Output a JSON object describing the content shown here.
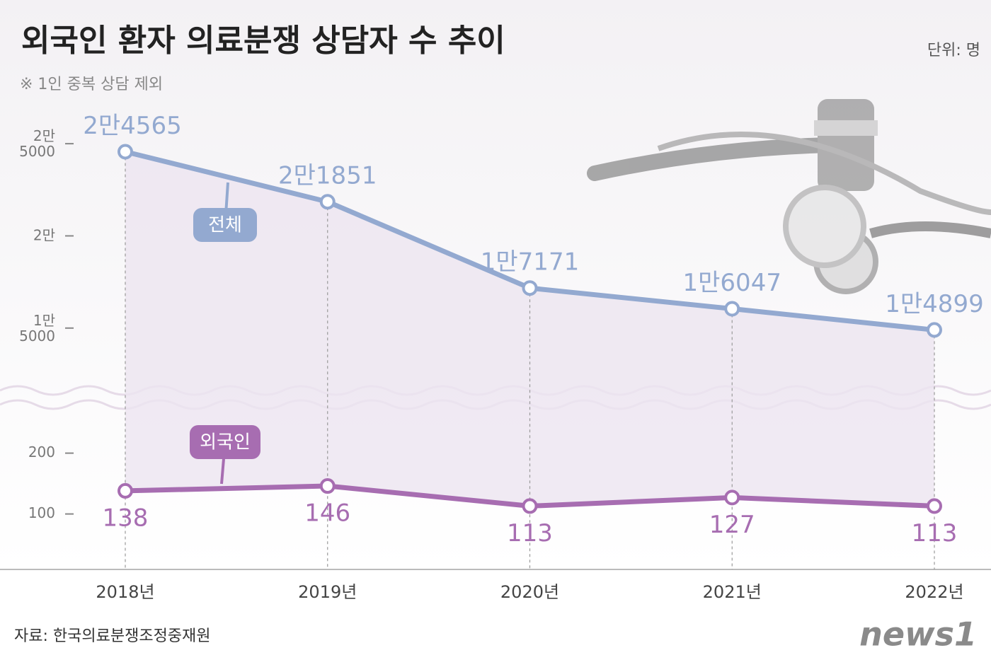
{
  "chart_data": {
    "type": "line",
    "title": "외국인 환자 의료분쟁 상담자 수 추이",
    "subtitle": "※ 1인 중복 상담 제외",
    "unit": "단위: 명",
    "source": "자료: 한국의료분쟁조정중재원",
    "logo": "news1",
    "categories": [
      "2018년",
      "2019년",
      "2020년",
      "2021년",
      "2022년"
    ],
    "series": [
      {
        "name": "전체",
        "color": "#93a9d0",
        "values": [
          24565,
          21851,
          17171,
          16047,
          14899
        ],
        "value_labels": [
          "2만4565",
          "2만1851",
          "1만7171",
          "1만6047",
          "1만4899"
        ]
      },
      {
        "name": "외국인",
        "color": "#a76db1",
        "axis": "y2",
        "values": [
          138,
          146,
          113,
          127,
          113
        ]
      }
    ],
    "ylim": [
      12000,
      27000
    ],
    "yticks": [
      {
        "value": 15000,
        "label": "1만\n5000"
      },
      {
        "value": 20000,
        "label": "2만"
      },
      {
        "value": 25000,
        "label": "2만\n5000"
      }
    ],
    "y2lim": [
      10,
      260
    ],
    "y2ticks": [
      100,
      200
    ],
    "grid": false
  }
}
